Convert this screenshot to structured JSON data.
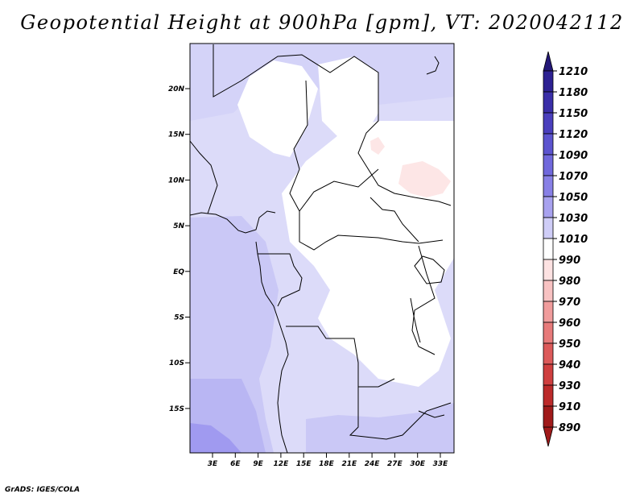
{
  "title": "Geopotential Height at 900hPa [gpm], VT: 2020042112",
  "credit": "GrADS: IGES/COLA",
  "map": {
    "lat_ticks": [
      "20N",
      "15N",
      "10N",
      "5N",
      "EQ",
      "5S",
      "10S",
      "15S"
    ],
    "lon_ticks": [
      "3E",
      "6E",
      "9E",
      "12E",
      "15E",
      "18E",
      "21E",
      "24E",
      "27E",
      "30E",
      "33E"
    ]
  },
  "legend": {
    "units": "gpm",
    "levels": [
      {
        "label": "1210",
        "color": "#241878"
      },
      {
        "label": "1180",
        "color": "#2d2192"
      },
      {
        "label": "1150",
        "color": "#3a2ea8"
      },
      {
        "label": "1120",
        "color": "#4a3fbd"
      },
      {
        "label": "1090",
        "color": "#5c54cf"
      },
      {
        "label": "1070",
        "color": "#7068dc"
      },
      {
        "label": "1050",
        "color": "#8880e6"
      },
      {
        "label": "1030",
        "color": "#a8a2ef"
      },
      {
        "label": "1010",
        "color": "#cfcdf7"
      },
      {
        "label": "990",
        "color": "#ffffff"
      },
      {
        "label": "980",
        "color": "#fde2e2"
      },
      {
        "label": "970",
        "color": "#f8c2c2"
      },
      {
        "label": "960",
        "color": "#f09c9c"
      },
      {
        "label": "950",
        "color": "#e77a7a"
      },
      {
        "label": "940",
        "color": "#dc5a5a"
      },
      {
        "label": "930",
        "color": "#cf3f3f"
      },
      {
        "label": "910",
        "color": "#bc2a2a"
      },
      {
        "label": "890",
        "color": "#a01a1a"
      }
    ]
  }
}
